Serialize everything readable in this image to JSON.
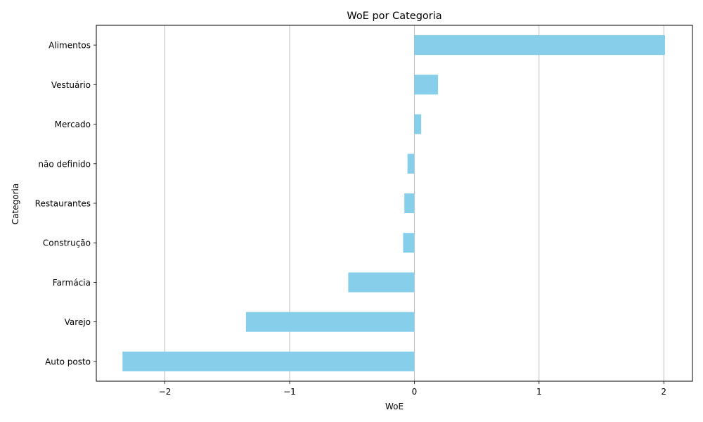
{
  "chart_data": {
    "type": "bar",
    "orientation": "horizontal",
    "title": "WoE por Categoria",
    "xlabel": "WoE",
    "ylabel": "Categoria",
    "categories": [
      "Alimentos",
      "Vestuário",
      "Mercado",
      "não definido",
      "Restaurantes",
      "Construção",
      "Farmácia",
      "Varejo",
      "Auto posto"
    ],
    "values": [
      2.01,
      0.19,
      0.055,
      -0.055,
      -0.08,
      -0.09,
      -0.53,
      -1.35,
      -2.34
    ],
    "xlim": [
      -2.55,
      2.23
    ],
    "xticks": [
      -2,
      -1,
      0,
      1,
      2
    ],
    "xtick_labels": [
      "−2",
      "−1",
      "0",
      "1",
      "2"
    ],
    "grid": "x",
    "bar_color": "#87ceeb"
  }
}
